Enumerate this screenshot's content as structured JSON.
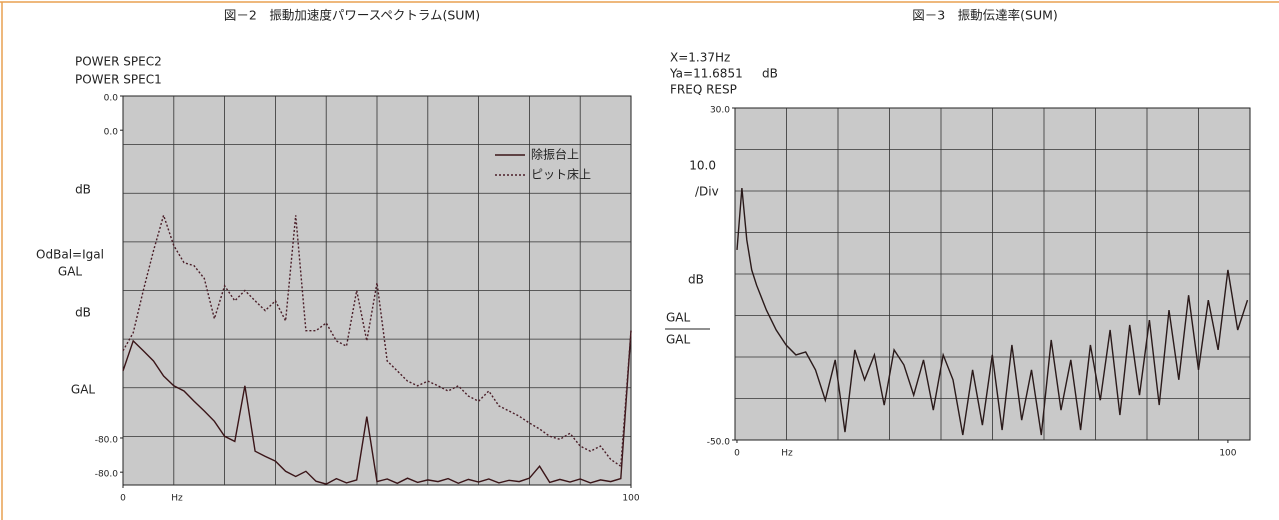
{
  "chart_data": [
    {
      "type": "line",
      "title": "図－2　振動加速度パワースペクトラム(SUM)",
      "annotations": [
        "POWER SPEC2",
        "POWER SPEC1",
        "dB",
        "OdBal=Igal",
        "GAL",
        "dB",
        "GAL"
      ],
      "xlabel": "Hz",
      "xlim": [
        0,
        100
      ],
      "xticks": [
        0,
        100
      ],
      "ylim": [
        -91,
        0
      ],
      "yticks": [
        {
          "value": 0,
          "label": "0.0"
        },
        {
          "value": -80,
          "label": "-80.0"
        }
      ],
      "y2lim": [
        -83,
        8
      ],
      "y2ticks": [
        {
          "value": 0,
          "label": "0.0"
        },
        {
          "value": -80,
          "label": "-80.0"
        }
      ],
      "grid": true,
      "legend": "upper right",
      "x": [
        0,
        2,
        4,
        6,
        8,
        10,
        12,
        14,
        16,
        18,
        20,
        22,
        24,
        26,
        28,
        30,
        32,
        34,
        36,
        38,
        40,
        42,
        44,
        46,
        48,
        50,
        52,
        54,
        56,
        58,
        60,
        62,
        64,
        66,
        68,
        70,
        72,
        74,
        76,
        78,
        80,
        82,
        84,
        86,
        88,
        90,
        92,
        94,
        96,
        98,
        100
      ],
      "series": [
        {
          "name": "除振台上",
          "color": "#3a1518",
          "style": "solid",
          "values": [
            -64.3,
            -57.3,
            -59.6,
            -62,
            -65.5,
            -67.8,
            -69,
            -71.4,
            -73.7,
            -76.1,
            -79.6,
            -80.8,
            -67.8,
            -83.1,
            -84.3,
            -85.4,
            -87.8,
            -89,
            -87.8,
            -90.1,
            -90.8,
            -89.5,
            -90.5,
            -89.8,
            -75,
            -90.2,
            -89.6,
            -90.6,
            -89.4,
            -90.4,
            -89.8,
            -90.2,
            -89.5,
            -90.6,
            -89.7,
            -90.3,
            -89.6,
            -90.5,
            -89.9,
            -90.2,
            -89.4,
            -86.6,
            -90.4,
            -89.7,
            -90.3,
            -89.6,
            -90.5,
            -89.8,
            -90.2,
            -89.5,
            -54.9
          ]
        },
        {
          "name": "ピット床上",
          "color": "#4a1e28",
          "style": "dotted",
          "values": [
            -59.6,
            -55.4,
            -45.5,
            -36.2,
            -27.9,
            -35,
            -39,
            -39.7,
            -42.7,
            -52.1,
            -44.4,
            -47.9,
            -45.5,
            -47.9,
            -50.2,
            -47.9,
            -52.6,
            -27.9,
            -54.9,
            -54.9,
            -53.1,
            -57.3,
            -58.5,
            -45.5,
            -57.3,
            -43.7,
            -62,
            -64.3,
            -66.7,
            -67.8,
            -66.7,
            -67.8,
            -69,
            -67.8,
            -70.2,
            -71.4,
            -69,
            -72.5,
            -73.7,
            -74.9,
            -76.5,
            -77.9,
            -79.6,
            -80.3,
            -78.9,
            -81.9,
            -83.1,
            -81.9,
            -85,
            -86.6,
            -54.9
          ]
        }
      ]
    },
    {
      "type": "line",
      "title": "図－3　振動伝達率(SUM)",
      "annotations": [
        "X=1.37Hz",
        "Ya=11.6851",
        "dB",
        "FREQ RESP",
        "10.0",
        "/Div",
        "dB",
        "GAL",
        "GAL"
      ],
      "xlabel": "Hz",
      "xlim": [
        -0.4,
        104.5
      ],
      "xticks": [
        0,
        100
      ],
      "ylim": [
        -50,
        30
      ],
      "yticks": [
        {
          "value": 30,
          "label": "30.0"
        },
        {
          "value": -50,
          "label": "-50.0"
        }
      ],
      "grid": true,
      "x": [
        0,
        1,
        2,
        3,
        4,
        6,
        8,
        10,
        12,
        14,
        16,
        18,
        20,
        22,
        24,
        26,
        28,
        30,
        32,
        34,
        36,
        38,
        40,
        42,
        44,
        46,
        48,
        50,
        52,
        54,
        56,
        58,
        60,
        62,
        64,
        66,
        68,
        70,
        72,
        74,
        76,
        78,
        80,
        82,
        84,
        86,
        88,
        90,
        92,
        94,
        96,
        98,
        100,
        102,
        104
      ],
      "series": [
        {
          "color": "#2a1a1a",
          "style": "solid",
          "values": [
            -4.2,
            10.7,
            -1.8,
            -9,
            -12.7,
            -18.7,
            -23.5,
            -27.1,
            -29.5,
            -28.8,
            -33.1,
            -40.4,
            -30.7,
            -48.1,
            -28.3,
            -35.5,
            -29.5,
            -41.6,
            -28.3,
            -31.9,
            -39.2,
            -30.7,
            -42.8,
            -29.5,
            -35.5,
            -48.8,
            -33.1,
            -46.4,
            -29.5,
            -47.6,
            -27.1,
            -45.2,
            -33.1,
            -48.8,
            -25.9,
            -42.8,
            -30.7,
            -47.6,
            -27.1,
            -40.4,
            -23.5,
            -44,
            -22.3,
            -39.2,
            -21.1,
            -41.6,
            -18.7,
            -35.5,
            -15.1,
            -33.1,
            -16.3,
            -28.3,
            -9,
            -23.5,
            -16.3
          ]
        }
      ]
    }
  ]
}
